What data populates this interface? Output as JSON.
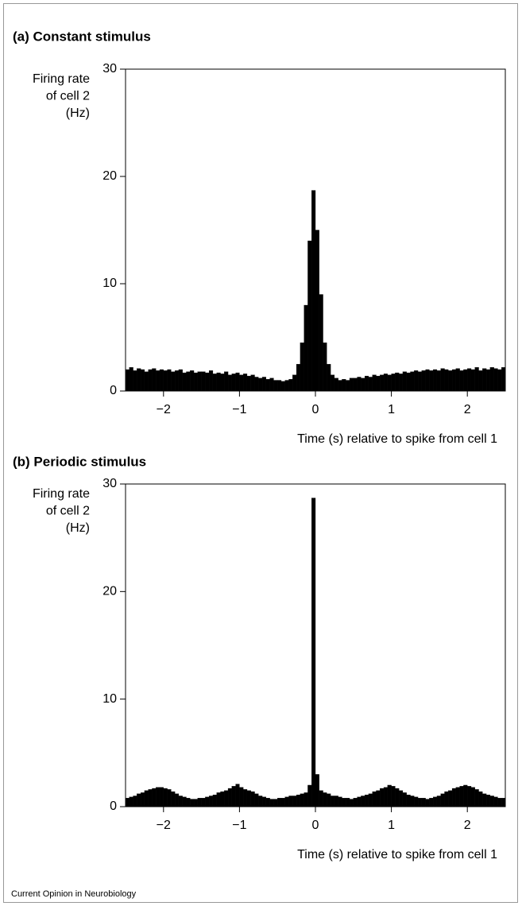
{
  "chart_data": [
    {
      "type": "histogram",
      "title": "(a) Constant stimulus",
      "ylabel": [
        "Firing rate",
        "of cell 2",
        "(Hz)"
      ],
      "xlabel": "Time (s) relative to spike from cell 1",
      "color": "#000000",
      "bins": [
        -2.5,
        -2.45,
        -2.4,
        -2.35,
        -2.3,
        -2.25,
        -2.2,
        -2.15,
        -2.1,
        -2.05,
        -2,
        -1.95,
        -1.9,
        -1.85,
        -1.8,
        -1.75,
        -1.7,
        -1.65,
        -1.6,
        -1.55,
        -1.5,
        -1.45,
        -1.4,
        -1.35,
        -1.3,
        -1.25,
        -1.2,
        -1.15,
        -1.1,
        -1.05,
        -1,
        -0.95,
        -0.9,
        -0.85,
        -0.8,
        -0.75,
        -0.7,
        -0.65,
        -0.6,
        -0.55,
        -0.5,
        -0.45,
        -0.4,
        -0.35,
        -0.3,
        -0.25,
        -0.2,
        -0.15,
        -0.1,
        -0.05,
        0,
        0.05,
        0.1,
        0.15,
        0.2,
        0.25,
        0.3,
        0.35,
        0.4,
        0.45,
        0.5,
        0.55,
        0.6,
        0.65,
        0.7,
        0.75,
        0.8,
        0.85,
        0.9,
        0.95,
        1,
        1.05,
        1.1,
        1.15,
        1.2,
        1.25,
        1.3,
        1.35,
        1.4,
        1.45,
        1.5,
        1.55,
        1.6,
        1.65,
        1.7,
        1.75,
        1.8,
        1.85,
        1.9,
        1.95,
        2,
        2.05,
        2.1,
        2.15,
        2.2,
        2.25,
        2.3,
        2.35,
        2.4,
        2.45,
        2.5
      ],
      "values": [
        2.0,
        2.2,
        1.9,
        2.1,
        2.0,
        1.8,
        2.0,
        2.1,
        1.9,
        2.0,
        1.9,
        2.0,
        1.8,
        1.9,
        2.0,
        1.7,
        1.8,
        1.9,
        1.7,
        1.8,
        1.8,
        1.7,
        1.9,
        1.6,
        1.7,
        1.6,
        1.8,
        1.5,
        1.6,
        1.7,
        1.5,
        1.6,
        1.4,
        1.5,
        1.3,
        1.2,
        1.3,
        1.1,
        1.2,
        1.0,
        1.0,
        0.9,
        1.0,
        1.1,
        1.5,
        2.5,
        4.5,
        8.0,
        14.0,
        18.7,
        15.0,
        9.0,
        4.5,
        2.5,
        1.5,
        1.2,
        1.0,
        1.1,
        1.0,
        1.2,
        1.2,
        1.3,
        1.2,
        1.4,
        1.3,
        1.5,
        1.4,
        1.5,
        1.6,
        1.5,
        1.6,
        1.7,
        1.6,
        1.8,
        1.7,
        1.8,
        1.9,
        1.8,
        1.9,
        2.0,
        1.9,
        2.0,
        1.9,
        2.1,
        2.0,
        1.9,
        2.0,
        2.1,
        1.9,
        2.0,
        2.1,
        2.0,
        2.2,
        1.9,
        2.1,
        2.0,
        2.2,
        2.1,
        2.0,
        2.2
      ],
      "xlim": [
        -2.5,
        2.5
      ],
      "xticks": [
        {
          "value": -2,
          "label": "−2"
        },
        {
          "value": -1,
          "label": "−1"
        },
        0,
        1,
        2
      ],
      "ylim": [
        0,
        30
      ],
      "yticks": [
        0,
        10,
        20,
        30
      ]
    },
    {
      "type": "histogram",
      "title": "(b) Periodic stimulus",
      "ylabel": [
        "Firing rate",
        "of cell 2",
        "(Hz)"
      ],
      "xlabel": "Time (s) relative to spike from cell 1",
      "color": "#000000",
      "bins": [
        -2.5,
        -2.45,
        -2.4,
        -2.35,
        -2.3,
        -2.25,
        -2.2,
        -2.15,
        -2.1,
        -2.05,
        -2,
        -1.95,
        -1.9,
        -1.85,
        -1.8,
        -1.75,
        -1.7,
        -1.65,
        -1.6,
        -1.55,
        -1.5,
        -1.45,
        -1.4,
        -1.35,
        -1.3,
        -1.25,
        -1.2,
        -1.15,
        -1.1,
        -1.05,
        -1,
        -0.95,
        -0.9,
        -0.85,
        -0.8,
        -0.75,
        -0.7,
        -0.65,
        -0.6,
        -0.55,
        -0.5,
        -0.45,
        -0.4,
        -0.35,
        -0.3,
        -0.25,
        -0.2,
        -0.15,
        -0.1,
        -0.05,
        0,
        0.05,
        0.1,
        0.15,
        0.2,
        0.25,
        0.3,
        0.35,
        0.4,
        0.45,
        0.5,
        0.55,
        0.6,
        0.65,
        0.7,
        0.75,
        0.8,
        0.85,
        0.9,
        0.95,
        1,
        1.05,
        1.1,
        1.15,
        1.2,
        1.25,
        1.3,
        1.35,
        1.4,
        1.45,
        1.5,
        1.55,
        1.6,
        1.65,
        1.7,
        1.75,
        1.8,
        1.85,
        1.9,
        1.95,
        2,
        2.05,
        2.1,
        2.15,
        2.2,
        2.25,
        2.3,
        2.35,
        2.4,
        2.45,
        2.5
      ],
      "values": [
        0.8,
        0.9,
        1.0,
        1.2,
        1.3,
        1.5,
        1.6,
        1.7,
        1.8,
        1.8,
        1.7,
        1.6,
        1.4,
        1.2,
        1.0,
        0.9,
        0.8,
        0.7,
        0.7,
        0.8,
        0.8,
        0.9,
        1.0,
        1.1,
        1.3,
        1.4,
        1.5,
        1.7,
        1.9,
        2.1,
        1.8,
        1.6,
        1.5,
        1.4,
        1.2,
        1.0,
        0.9,
        0.8,
        0.7,
        0.7,
        0.8,
        0.8,
        0.9,
        1.0,
        1.0,
        1.1,
        1.2,
        1.3,
        2.0,
        28.7,
        3.0,
        1.5,
        1.3,
        1.2,
        1.0,
        1.0,
        0.9,
        0.8,
        0.8,
        0.7,
        0.8,
        0.9,
        1.0,
        1.1,
        1.2,
        1.4,
        1.5,
        1.7,
        1.8,
        2.0,
        1.9,
        1.7,
        1.5,
        1.3,
        1.1,
        1.0,
        0.9,
        0.8,
        0.8,
        0.7,
        0.8,
        0.9,
        1.0,
        1.2,
        1.4,
        1.5,
        1.7,
        1.8,
        1.9,
        2.0,
        1.9,
        1.8,
        1.6,
        1.4,
        1.2,
        1.1,
        1.0,
        0.9,
        0.8,
        0.8
      ],
      "xlim": [
        -2.5,
        2.5
      ],
      "xticks": [
        {
          "value": -2,
          "label": "−2"
        },
        {
          "value": -1,
          "label": "−1"
        },
        0,
        1,
        2
      ],
      "ylim": [
        0,
        30
      ],
      "yticks": [
        0,
        10,
        20,
        30
      ]
    }
  ],
  "footer": "Current Opinion in Neurobiology"
}
